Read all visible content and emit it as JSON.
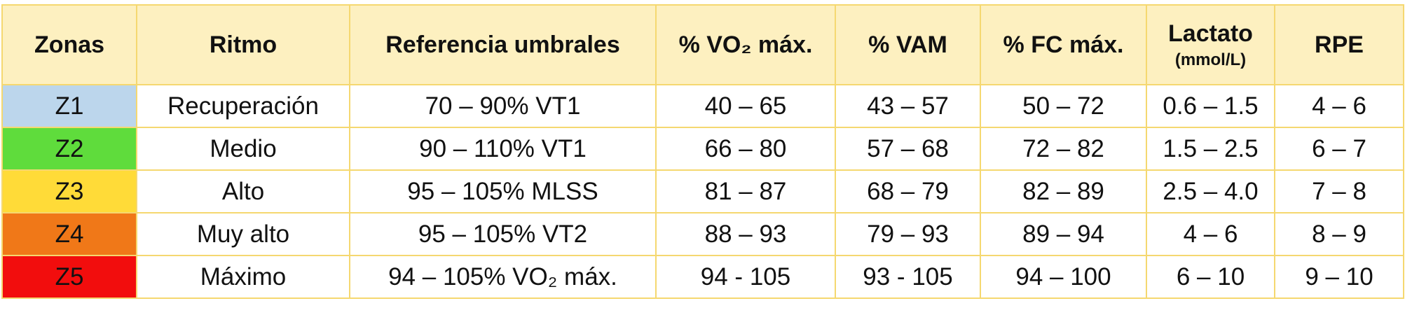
{
  "table": {
    "header": [
      "Zonas",
      "Ritmo",
      "Referencia umbrales",
      "% VO₂ máx.",
      "% VAM",
      "% FC máx.",
      "Lactato",
      "RPE"
    ],
    "header_note": "(mmol/L)",
    "rows": [
      {
        "zone": "Z1",
        "color": "#bcd6ec",
        "cells": [
          "Recuperación",
          "70 – 90% VT1",
          "40 – 65",
          "43 – 57",
          "50 – 72",
          "0.6 – 1.5",
          "4 – 6"
        ]
      },
      {
        "zone": "Z2",
        "color": "#5fdc3c",
        "cells": [
          "Medio",
          "90 – 110% VT1",
          "66 – 80",
          "57 – 68",
          "72 – 82",
          "1.5 – 2.5",
          "6 – 7"
        ]
      },
      {
        "zone": "Z3",
        "color": "#ffdb38",
        "cells": [
          "Alto",
          "95 – 105% MLSS",
          "81 – 87",
          "68 – 79",
          "82 – 89",
          "2.5 – 4.0",
          "7 – 8"
        ]
      },
      {
        "zone": "Z4",
        "color": "#f07818",
        "cells": [
          "Muy alto",
          "95 – 105% VT2",
          "88 – 93",
          "79 – 93",
          "89 – 94",
          "4 – 6",
          "8 – 9"
        ]
      },
      {
        "zone": "Z5",
        "color": "#f20d0d",
        "cells": [
          "Máximo",
          "94 – 105% VO₂ máx.",
          "94 - 105",
          "93 - 105",
          "94 – 100",
          "6 – 10",
          "9 – 10"
        ]
      }
    ]
  }
}
